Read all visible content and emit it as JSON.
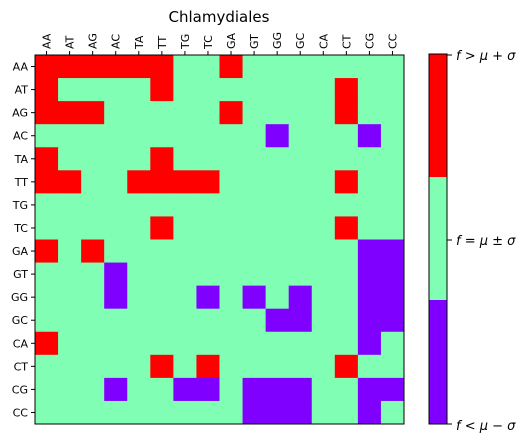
{
  "chart_data": {
    "type": "heatmap",
    "title": "Chlamydiales",
    "x_categories": [
      "AA",
      "AT",
      "AG",
      "AC",
      "TA",
      "TT",
      "TG",
      "TC",
      "GA",
      "GT",
      "GG",
      "GC",
      "CA",
      "CT",
      "CG",
      "CC"
    ],
    "y_categories": [
      "AA",
      "AT",
      "AG",
      "AC",
      "TA",
      "TT",
      "TG",
      "TC",
      "GA",
      "GT",
      "GG",
      "GC",
      "CA",
      "CT",
      "CG",
      "CC"
    ],
    "value_levels": [
      -1,
      0,
      1
    ],
    "level_colors": {
      "-1": "#7f00ff",
      "0": "#80ffb4",
      "1": "#ff0000"
    },
    "colorbar_labels": {
      "high": "f > μ + σ",
      "mid": "f = μ ± σ",
      "low": "f < μ − σ"
    },
    "values": [
      [
        1,
        1,
        1,
        1,
        1,
        1,
        0,
        0,
        1,
        0,
        0,
        0,
        0,
        0,
        0,
        0
      ],
      [
        1,
        0,
        0,
        0,
        0,
        1,
        0,
        0,
        0,
        0,
        0,
        0,
        0,
        1,
        0,
        0
      ],
      [
        1,
        1,
        1,
        0,
        0,
        0,
        0,
        0,
        1,
        0,
        0,
        0,
        0,
        1,
        0,
        0
      ],
      [
        0,
        0,
        0,
        0,
        0,
        0,
        0,
        0,
        0,
        0,
        -1,
        0,
        0,
        0,
        -1,
        0
      ],
      [
        1,
        0,
        0,
        0,
        0,
        1,
        0,
        0,
        0,
        0,
        0,
        0,
        0,
        0,
        0,
        0
      ],
      [
        1,
        1,
        0,
        0,
        1,
        1,
        1,
        1,
        0,
        0,
        0,
        0,
        0,
        1,
        0,
        0
      ],
      [
        0,
        0,
        0,
        0,
        0,
        0,
        0,
        0,
        0,
        0,
        0,
        0,
        0,
        0,
        0,
        0
      ],
      [
        0,
        0,
        0,
        0,
        0,
        1,
        0,
        0,
        0,
        0,
        0,
        0,
        0,
        1,
        0,
        0
      ],
      [
        1,
        0,
        1,
        0,
        0,
        0,
        0,
        0,
        0,
        0,
        0,
        0,
        0,
        0,
        -1,
        -1
      ],
      [
        0,
        0,
        0,
        -1,
        0,
        0,
        0,
        0,
        0,
        0,
        0,
        0,
        0,
        0,
        -1,
        -1
      ],
      [
        0,
        0,
        0,
        -1,
        0,
        0,
        0,
        -1,
        0,
        -1,
        0,
        -1,
        0,
        0,
        -1,
        -1
      ],
      [
        0,
        0,
        0,
        0,
        0,
        0,
        0,
        0,
        0,
        0,
        -1,
        -1,
        0,
        0,
        -1,
        -1
      ],
      [
        1,
        0,
        0,
        0,
        0,
        0,
        0,
        0,
        0,
        0,
        0,
        0,
        0,
        0,
        -1,
        0
      ],
      [
        0,
        0,
        0,
        0,
        0,
        1,
        0,
        1,
        0,
        0,
        0,
        0,
        0,
        1,
        0,
        0
      ],
      [
        0,
        0,
        0,
        -1,
        0,
        0,
        -1,
        -1,
        0,
        -1,
        -1,
        -1,
        0,
        0,
        -1,
        -1
      ],
      [
        0,
        0,
        0,
        0,
        0,
        0,
        0,
        0,
        0,
        -1,
        -1,
        -1,
        0,
        0,
        -1,
        0
      ]
    ]
  }
}
